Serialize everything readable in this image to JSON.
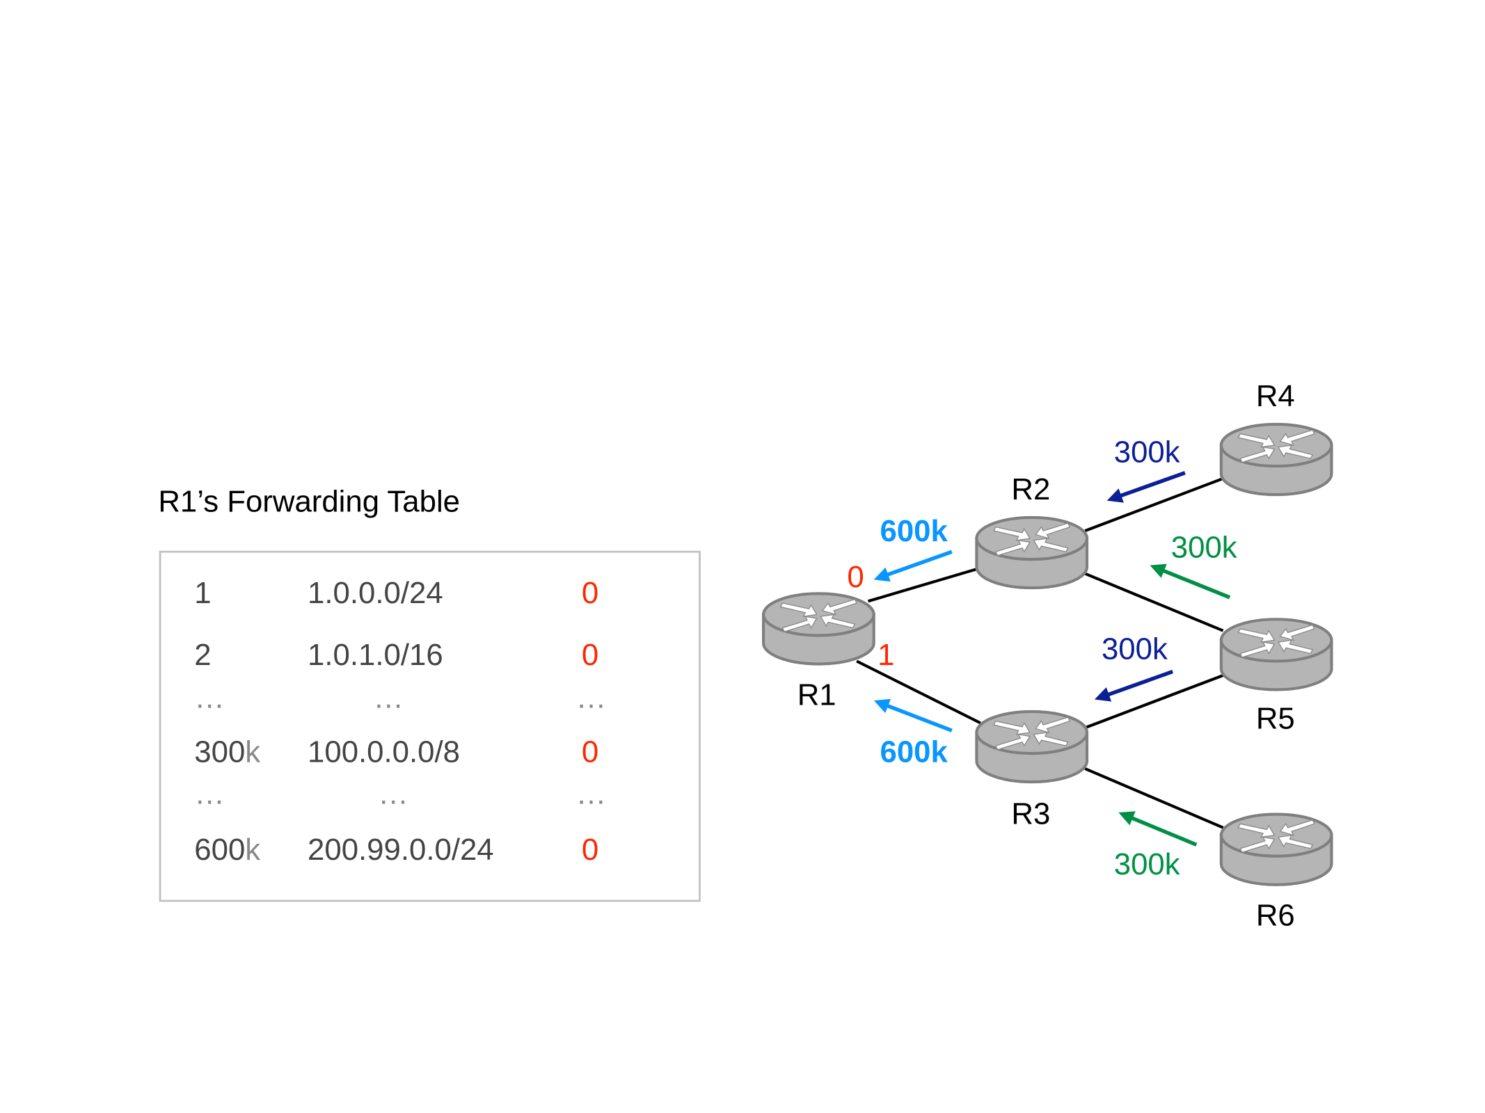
{
  "table": {
    "title": "R1’s Forwarding Table",
    "rows": [
      {
        "index": "1",
        "index_suffix": "",
        "prefix": "1.0.0.0/24",
        "port": "0"
      },
      {
        "index": "2",
        "index_suffix": "",
        "prefix": "1.0.1.0/16",
        "port": "0"
      },
      {
        "index": "…",
        "index_suffix": "",
        "prefix": "…",
        "port": "…"
      },
      {
        "index": "300",
        "index_suffix": "k",
        "prefix": "100.0.0.0/8",
        "port": "0"
      },
      {
        "index": "…",
        "index_suffix": "",
        "prefix": "…",
        "port": "…"
      },
      {
        "index": "600",
        "index_suffix": "k",
        "prefix": "200.99.0.0/24",
        "port": "0"
      }
    ]
  },
  "routers": [
    "R1",
    "R2",
    "R3",
    "R4",
    "R5",
    "R6"
  ],
  "ports": {
    "r1_to_r2": "0",
    "r1_to_r3": "1"
  },
  "announcements": {
    "r4_to_r2": "300k",
    "r5_to_r2": "300k",
    "r5_to_r3": "300k",
    "r6_to_r3": "300k",
    "r2_to_r1": "600k",
    "r3_to_r1": "600k"
  },
  "colors": {
    "port": "#ff2600",
    "dark_blue": "#0b1f96",
    "green": "#009045",
    "light_blue": "#0a96ff",
    "router_fill": "#b5b5b5",
    "router_stroke": "#7f7f7f"
  },
  "icons": {
    "router": "router-icon"
  }
}
